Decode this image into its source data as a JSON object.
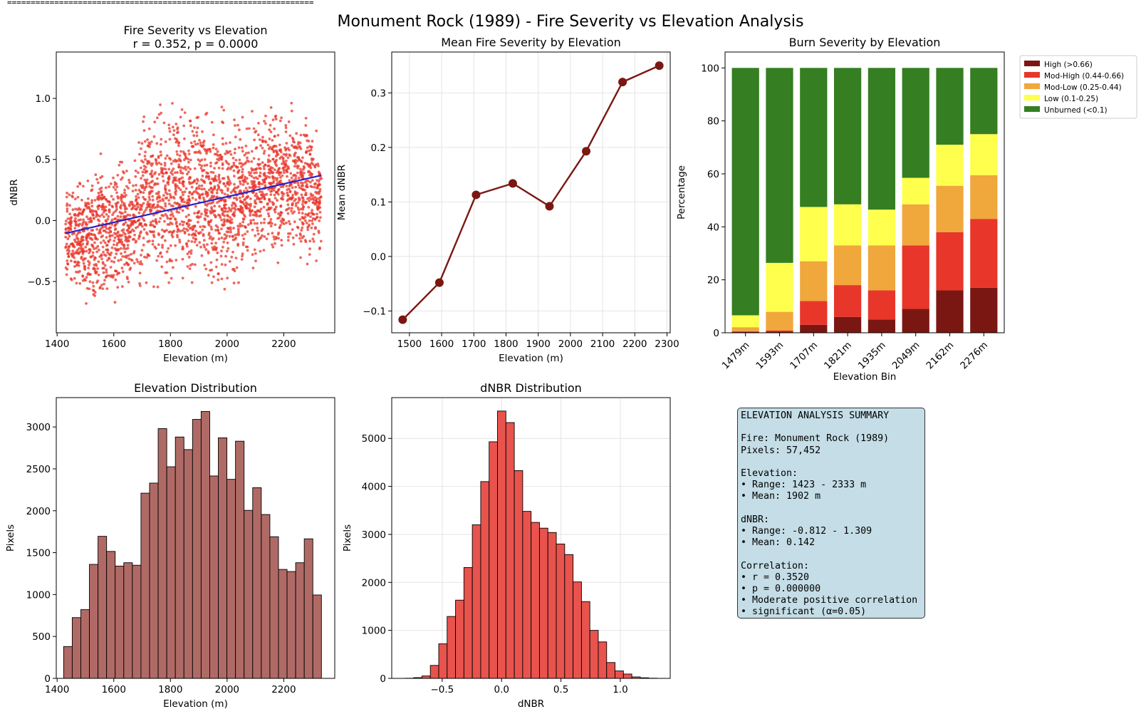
{
  "figure": {
    "separator": "=================================================================",
    "title": "Monument Rock (1989) - Fire Severity vs Elevation Analysis"
  },
  "colors": {
    "scatter": "#e8362a",
    "trend": "#2222cc",
    "mean_line": "#7b1712",
    "elev_hist": "#b06a66",
    "dnbr_hist": "#e8534d",
    "summary_bg": "#c4dde6"
  },
  "chart_data": [
    {
      "id": "scatter",
      "type": "scatter",
      "title": "Fire Severity vs Elevation",
      "subtitle": "r = 0.352, p = 0.0000",
      "xlabel": "Elevation (m)",
      "ylabel": "dNBR",
      "xlim": [
        1397,
        2380
      ],
      "ylim": [
        -0.92,
        1.38
      ],
      "xticks": [
        1400,
        1600,
        1800,
        2000,
        2200
      ],
      "yticks": [
        -0.5,
        0.0,
        0.5,
        1.0
      ],
      "ytick_labels": [
        "−0.5",
        "0.0",
        "0.5",
        "1.0"
      ],
      "grid": false,
      "trend_line": {
        "x": [
          1430,
          2333
        ],
        "y": [
          -0.105,
          0.37
        ]
      },
      "envelope": [
        {
          "x": 1430,
          "lo": -0.5,
          "hi": 0.35
        },
        {
          "x": 1460,
          "lo": -0.58,
          "hi": 0.25
        },
        {
          "x": 1530,
          "lo": -0.75,
          "hi": 0.55
        },
        {
          "x": 1600,
          "lo": -0.68,
          "hi": 0.55
        },
        {
          "x": 1660,
          "lo": -0.65,
          "hi": 0.48
        },
        {
          "x": 1700,
          "lo": -0.62,
          "hi": 0.85
        },
        {
          "x": 1800,
          "lo": -0.55,
          "hi": 1.0
        },
        {
          "x": 1900,
          "lo": -0.55,
          "hi": 0.95
        },
        {
          "x": 2000,
          "lo": -0.6,
          "hi": 0.88
        },
        {
          "x": 2100,
          "lo": -0.45,
          "hi": 0.95
        },
        {
          "x": 2200,
          "lo": -0.35,
          "hi": 1.0
        },
        {
          "x": 2300,
          "lo": -0.32,
          "hi": 0.85
        },
        {
          "x": 2333,
          "lo": -0.3,
          "hi": 0.75
        }
      ]
    },
    {
      "id": "mean_line",
      "type": "line",
      "title": "Mean Fire Severity by Elevation",
      "xlabel": "Elevation (m)",
      "ylabel": "Mean dNBR",
      "xlim": [
        1445,
        2310
      ],
      "ylim": [
        -0.14,
        0.375
      ],
      "xticks": [
        1500,
        1600,
        1700,
        1800,
        1900,
        2000,
        2100,
        2200,
        2300
      ],
      "yticks": [
        -0.1,
        0.0,
        0.1,
        0.2,
        0.3
      ],
      "ytick_labels": [
        "−0.1",
        "0.0",
        "0.1",
        "0.2",
        "0.3"
      ],
      "grid": true,
      "x": [
        1479,
        1593,
        1707,
        1821,
        1935,
        2049,
        2162,
        2276
      ],
      "y": [
        -0.116,
        -0.048,
        0.113,
        0.134,
        0.092,
        0.193,
        0.32,
        0.35
      ]
    },
    {
      "id": "stacked",
      "type": "bar",
      "title": "Burn Severity by Elevation",
      "xlabel": "Elevation Bin",
      "ylabel": "Percentage",
      "ylim": [
        0,
        106
      ],
      "yticks": [
        0,
        20,
        40,
        60,
        80,
        100
      ],
      "grid": false,
      "legend_position": "outside-top-right",
      "categories": [
        "1479m",
        "1593m",
        "1707m",
        "1821m",
        "1935m",
        "2049m",
        "2162m",
        "2276m"
      ],
      "series": [
        {
          "name": "High (>0.66)",
          "color": "#7b1712",
          "values": [
            0.3,
            0.4,
            3,
            6,
            5,
            9,
            16,
            17
          ]
        },
        {
          "name": "Mod-High (0.44-0.66)",
          "color": "#e8362a",
          "values": [
            0.3,
            0.5,
            9,
            12,
            11,
            24,
            22,
            26
          ]
        },
        {
          "name": "Mod-Low (0.25-0.44)",
          "color": "#f0a73c",
          "values": [
            1.5,
            7,
            15,
            15,
            17,
            15.5,
            17.5,
            16.5
          ]
        },
        {
          "name": "Low (0.1-0.25)",
          "color": "#ffff4d",
          "values": [
            4.5,
            18.5,
            20.5,
            15.5,
            13.5,
            10,
            15.5,
            15.5
          ]
        },
        {
          "name": "Unburned (<0.1)",
          "color": "#357e22",
          "values": [
            93.4,
            73.6,
            52.5,
            51.5,
            53.5,
            41.5,
            29,
            25
          ]
        }
      ]
    },
    {
      "id": "elev_hist",
      "type": "bar",
      "title": "Elevation Distribution",
      "xlabel": "Elevation (m)",
      "ylabel": "Pixels",
      "xlim": [
        1397,
        2380
      ],
      "ylim": [
        0,
        3350
      ],
      "xticks": [
        1400,
        1600,
        1800,
        2000,
        2200
      ],
      "yticks": [
        0,
        500,
        1000,
        1500,
        2000,
        2500,
        3000
      ],
      "grid": false,
      "bin_start": 1423,
      "bin_end": 2333,
      "values": [
        380,
        725,
        820,
        1360,
        1695,
        1515,
        1340,
        1380,
        1350,
        2210,
        2330,
        2980,
        2525,
        2880,
        2730,
        3090,
        3185,
        2415,
        2870,
        2375,
        2830,
        2005,
        2275,
        1955,
        1690,
        1300,
        1275,
        1380,
        1665,
        995
      ]
    },
    {
      "id": "dnbr_hist",
      "type": "bar",
      "title": "dNBR Distribution",
      "xlabel": "dNBR",
      "ylabel": "",
      "xlim": [
        -0.925,
        1.42
      ],
      "ylim": [
        0,
        5850
      ],
      "xticks": [
        -0.5,
        0.0,
        0.5,
        1.0
      ],
      "xtick_labels": [
        "−0.5",
        "0.0",
        "0.5",
        "1.0"
      ],
      "yticks": [
        0,
        1000,
        2000,
        3000,
        4000,
        5000
      ],
      "grid": true,
      "bin_start": -0.812,
      "bin_end": 1.309,
      "values": [
        3,
        15,
        50,
        270,
        720,
        1290,
        1630,
        2310,
        3200,
        4100,
        4930,
        5570,
        5330,
        4330,
        3480,
        3250,
        3130,
        3040,
        2800,
        2580,
        2010,
        1600,
        1000,
        760,
        330,
        155,
        90,
        30,
        12,
        4
      ]
    }
  ],
  "hist_ylabel": "Pixels",
  "summary": {
    "lines": [
      "ELEVATION ANALYSIS SUMMARY",
      "",
      "Fire: Monument Rock (1989)",
      "Pixels: 57,452",
      "",
      "Elevation:",
      "• Range: 1423 - 2333 m",
      "• Mean: 1902 m",
      "",
      "dNBR:",
      "• Range: -0.812 - 1.309",
      "• Mean: 0.142",
      "",
      "Correlation:",
      "• r = 0.3520",
      "• p = 0.000000",
      "• Moderate positive correlation",
      "• significant (α=0.05)"
    ]
  }
}
